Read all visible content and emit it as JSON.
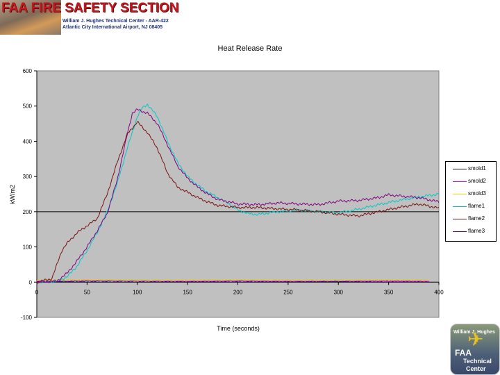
{
  "header": {
    "title": "FAA FIRE SAFETY SECTION",
    "line1": "William J. Hughes Technical Center - AAR-422",
    "line2": "Atlantic City International Airport, NJ 08405"
  },
  "badge": {
    "top_text": "William J. Hughes",
    "faa": "FAA",
    "technical": "Technical",
    "center": "Center"
  },
  "chart_data": {
    "type": "line",
    "title": "Heat Release Rate",
    "xlabel": "Time (seconds)",
    "ylabel": "kW/m2",
    "xlim": [
      0,
      400
    ],
    "ylim": [
      -100,
      600
    ],
    "xticks": [
      0,
      50,
      100,
      150,
      200,
      250,
      300,
      350,
      400
    ],
    "yticks": [
      -100,
      0,
      100,
      200,
      300,
      400,
      500,
      600
    ],
    "grid": false,
    "plot_background": "#c0c0c0",
    "legend_position": "right",
    "series": [
      {
        "name": "smold1",
        "color": "#000080",
        "x": [
          0,
          20,
          50,
          100,
          150,
          200,
          250,
          300,
          350,
          390
        ],
        "y": [
          2,
          2,
          3,
          3,
          2,
          3,
          2,
          2,
          3,
          2
        ]
      },
      {
        "name": "smold2",
        "color": "#ff00ff",
        "x": [
          0,
          20,
          50,
          100,
          150,
          200,
          250,
          300,
          350,
          390
        ],
        "y": [
          3,
          4,
          5,
          4,
          3,
          4,
          3,
          4,
          3,
          3
        ]
      },
      {
        "name": "smold3",
        "color": "#e8d800",
        "x": [
          0,
          20,
          50,
          100,
          150,
          200,
          250,
          300,
          350,
          390
        ],
        "y": [
          5,
          5,
          6,
          5,
          5,
          6,
          5,
          5,
          6,
          5
        ]
      },
      {
        "name": "flame1",
        "color": "#00c8c8",
        "x": [
          0,
          20,
          30,
          40,
          50,
          60,
          70,
          80,
          90,
          100,
          105,
          110,
          120,
          130,
          140,
          150,
          160,
          170,
          180,
          190,
          200,
          210,
          220,
          240,
          260,
          280,
          300,
          320,
          340,
          360,
          380,
          400
        ],
        "y": [
          0,
          2,
          15,
          45,
          90,
          140,
          200,
          280,
          380,
          470,
          495,
          505,
          470,
          400,
          340,
          300,
          275,
          255,
          240,
          225,
          205,
          195,
          192,
          200,
          205,
          200,
          197,
          207,
          220,
          232,
          242,
          250
        ]
      },
      {
        "name": "flame2",
        "color": "#7a1010",
        "x": [
          0,
          15,
          20,
          25,
          30,
          40,
          50,
          60,
          70,
          80,
          90,
          100,
          105,
          110,
          120,
          130,
          140,
          150,
          160,
          170,
          180,
          200,
          220,
          240,
          260,
          280,
          300,
          320,
          340,
          360,
          380,
          400
        ],
        "y": [
          0,
          10,
          50,
          90,
          110,
          140,
          160,
          180,
          250,
          340,
          420,
          455,
          440,
          425,
          380,
          310,
          270,
          255,
          240,
          228,
          218,
          212,
          212,
          208,
          205,
          200,
          193,
          188,
          200,
          212,
          222,
          210
        ]
      },
      {
        "name": "flame3",
        "color": "#800080",
        "x": [
          0,
          20,
          30,
          40,
          50,
          60,
          70,
          80,
          90,
          95,
          100,
          110,
          120,
          130,
          140,
          150,
          160,
          170,
          180,
          200,
          220,
          240,
          260,
          280,
          300,
          320,
          340,
          350,
          360,
          380,
          400
        ],
        "y": [
          0,
          3,
          25,
          60,
          100,
          145,
          195,
          290,
          420,
          480,
          490,
          480,
          450,
          390,
          330,
          295,
          270,
          250,
          235,
          222,
          220,
          225,
          222,
          220,
          230,
          232,
          240,
          248,
          245,
          240,
          228
        ]
      }
    ]
  }
}
